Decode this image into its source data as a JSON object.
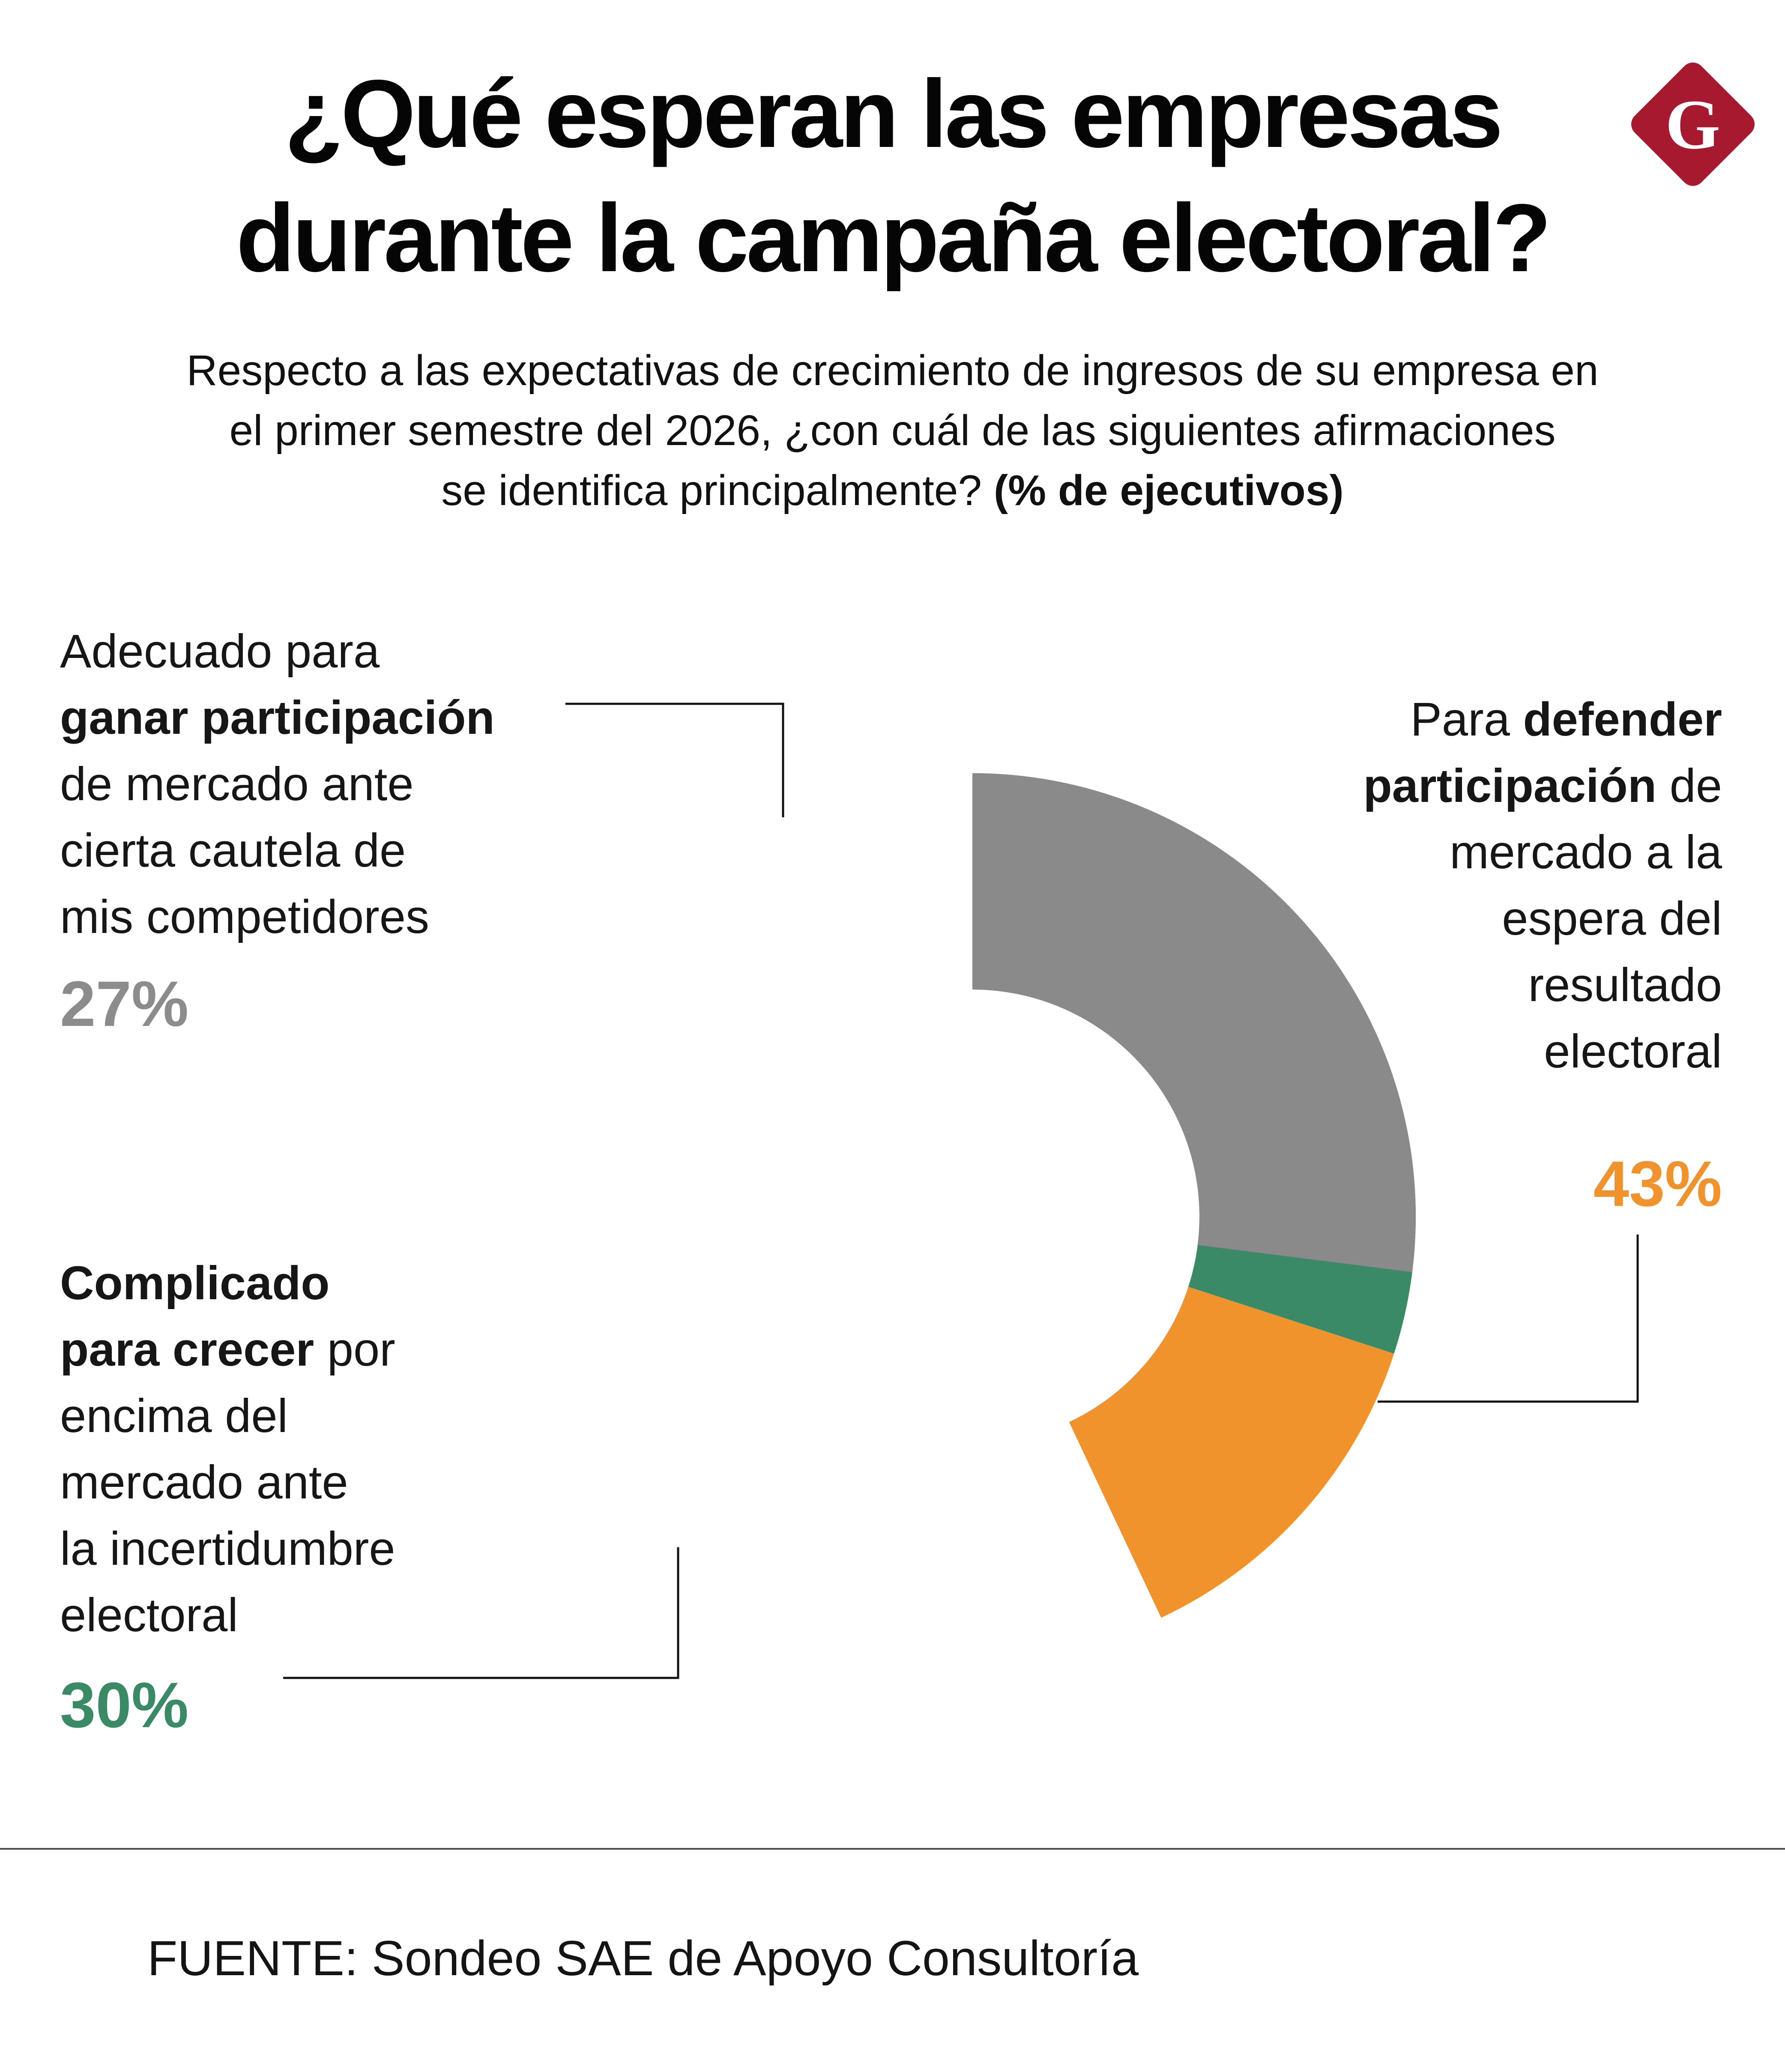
{
  "header": {
    "title_line1": "¿Qué esperan las empresas",
    "title_line2": "durante la campaña electoral?",
    "logo_letter": "G"
  },
  "subtitle": {
    "line1": "Respecto a las expectativas de crecimiento de ingresos de su empresa en",
    "line2": "el primer semestre del 2026, ¿con cuál de las siguientes afirmaciones",
    "line3_regular": "se identifica principalmente? ",
    "line3_bold": "(% de ejecutivos)"
  },
  "chart_data": {
    "type": "pie",
    "donut": true,
    "title": "¿Qué esperan las empresas durante la campaña electoral?",
    "subtitle": "Respecto a las expectativas de crecimiento de ingresos de su empresa en el primer semestre del 2026, ¿con cuál de las siguientes afirmaciones se identifica principalmente? (% de ejecutivos)",
    "unit": "% de ejecutivos",
    "start_angle": "top",
    "direction": "clockwise",
    "categories": [
      "Para defender participación de mercado a la espera del resultado electoral",
      "Complicado para crecer por encima del mercado ante la incertidumbre electoral",
      "Adecuado para ganar participación de mercado ante cierta cautela de mis competidores"
    ],
    "values": [
      43,
      30,
      27
    ],
    "labels": [
      "43%",
      "30%",
      "27%"
    ],
    "colors": [
      "#F0932C",
      "#3A8A68",
      "#8A8A8A"
    ],
    "legend_position": "callout-labels"
  },
  "annotations": {
    "gain": {
      "l1": "Adecuado para",
      "l2b": "ganar participación",
      "l3": "de mercado ante",
      "l4": "cierta cautela de",
      "l5": "mis competidores",
      "pct": "27%"
    },
    "complicated": {
      "l1b": "Complicado",
      "l2b": "para crecer",
      "l2": " por",
      "l3": "encima del",
      "l4": "mercado ante",
      "l5": "la incertidumbre",
      "l6": "electoral",
      "pct": "30%"
    },
    "defend": {
      "l1": "Para ",
      "l1b": "defender",
      "l2b": "participación",
      "l2": " de",
      "l3": "mercado a la",
      "l4": "espera del",
      "l5": "resultado",
      "l6": "electoral",
      "pct": "43%"
    }
  },
  "footer": {
    "source": "FUENTE: Sondeo SAE de Apoyo Consultoría"
  }
}
